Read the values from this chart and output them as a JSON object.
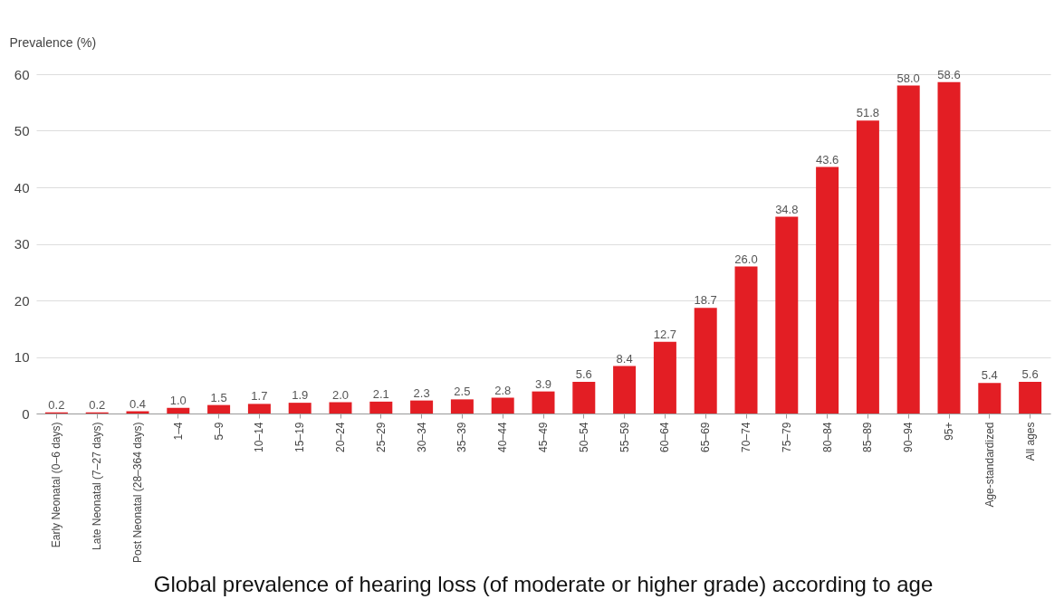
{
  "chart_data": {
    "type": "bar",
    "title": "Global prevalence of hearing loss (of moderate or higher grade) according to age",
    "ylabel": "Prevalence (%)",
    "categories": [
      "Early Neonatal (0–6 days)",
      "Late Neonatal (7–27 days)",
      "Post Neonatal (28–364 days)",
      "1–4",
      "5–9",
      "10–14",
      "15–19",
      "20–24",
      "25–29",
      "30–34",
      "35–39",
      "40–44",
      "45–49",
      "50–54",
      "55–59",
      "60–64",
      "65–69",
      "70–74",
      "75–79",
      "80–84",
      "85–89",
      "90–94",
      "95+",
      "Age-standardized",
      "All ages"
    ],
    "values": [
      0.2,
      0.2,
      0.4,
      1.0,
      1.5,
      1.7,
      1.9,
      2.0,
      2.1,
      2.3,
      2.5,
      2.8,
      3.9,
      5.6,
      8.4,
      12.7,
      18.7,
      26.0,
      34.8,
      43.6,
      51.8,
      58.0,
      58.6,
      5.4,
      5.6
    ],
    "value_labels": [
      "0.2",
      "0.2",
      "0.4",
      "1.0",
      "1.5",
      "1.7",
      "1.9",
      "2.0",
      "2.1",
      "2.3",
      "2.5",
      "2.8",
      "3.9",
      "5.6",
      "8.4",
      "12.7",
      "18.7",
      "26.0",
      "34.8",
      "43.6",
      "51.8",
      "58.0",
      "58.6",
      "5.4",
      "5.6"
    ],
    "color": "#e31e24",
    "ylim": [
      0,
      60
    ],
    "yticks": [
      0,
      10,
      20,
      30,
      40,
      50,
      60
    ],
    "grid": "y"
  }
}
